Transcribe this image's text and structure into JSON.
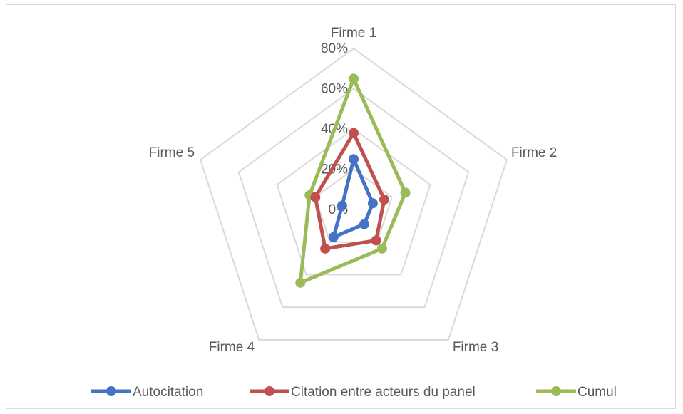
{
  "chart_data": {
    "type": "radar",
    "categories": [
      "Firme 1",
      "Firme 2",
      "Firme 3",
      "Firme 4",
      "Firme 5"
    ],
    "ticks": [
      "0%",
      "20%",
      "40%",
      "60%",
      "80%"
    ],
    "rmax": 80,
    "series": [
      {
        "name": "Autocitation",
        "color": "#4472c4",
        "values": [
          25,
          10,
          9,
          17,
          6
        ]
      },
      {
        "name": "Citation entre acteurs du panel",
        "color": "#c0504d",
        "values": [
          38,
          16,
          19,
          24,
          20
        ]
      },
      {
        "name": "Cumul",
        "color": "#9bbb59",
        "values": [
          65,
          27,
          24,
          45,
          23
        ]
      }
    ],
    "legend_position": "bottom",
    "grid": true
  }
}
